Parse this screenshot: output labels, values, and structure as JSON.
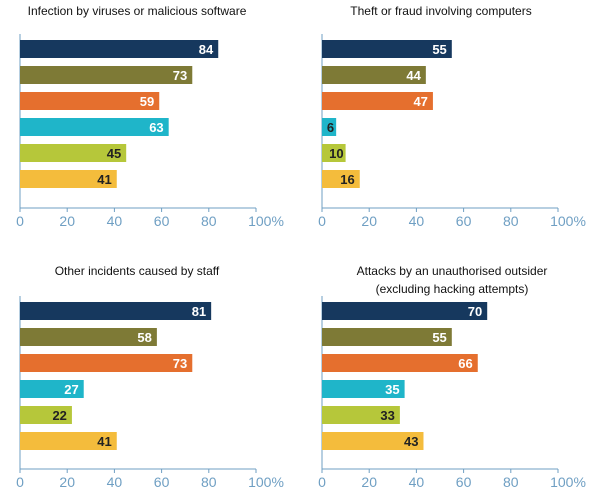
{
  "palette": [
    "#16385e",
    "#7e7a36",
    "#e56f2e",
    "#1fb5c9",
    "#b6c73a",
    "#f4bc3c"
  ],
  "axis_color": "#6f9fc3",
  "chart_data": [
    {
      "type": "bar",
      "title": [
        "Infection by viruses or malicious software"
      ],
      "values": [
        84,
        73,
        59,
        63,
        45,
        41
      ],
      "xlim": [
        0,
        100
      ],
      "ticks": [
        "0",
        "20",
        "40",
        "60",
        "80",
        "100%"
      ],
      "tick_values": [
        0,
        20,
        40,
        60,
        80,
        100
      ]
    },
    {
      "type": "bar",
      "title": [
        "Theft or fraud involving computers"
      ],
      "values": [
        55,
        44,
        47,
        6,
        10,
        16
      ],
      "xlim": [
        0,
        100
      ],
      "ticks": [
        "0",
        "20",
        "40",
        "60",
        "80",
        "100%"
      ],
      "tick_values": [
        0,
        20,
        40,
        60,
        80,
        100
      ]
    },
    {
      "type": "bar",
      "title": [
        "Other incidents caused by staff"
      ],
      "values": [
        81,
        58,
        73,
        27,
        22,
        41
      ],
      "xlim": [
        0,
        100
      ],
      "ticks": [
        "0",
        "20",
        "40",
        "60",
        "80",
        "100%"
      ],
      "tick_values": [
        0,
        20,
        40,
        60,
        80,
        100
      ]
    },
    {
      "type": "bar",
      "title": [
        "Attacks by an unauthorised outsider",
        "(excluding hacking attempts)"
      ],
      "values": [
        70,
        55,
        66,
        35,
        33,
        43
      ],
      "xlim": [
        0,
        100
      ],
      "ticks": [
        "0",
        "20",
        "40",
        "60",
        "80",
        "100%"
      ],
      "tick_values": [
        0,
        20,
        40,
        60,
        80,
        100
      ]
    }
  ]
}
